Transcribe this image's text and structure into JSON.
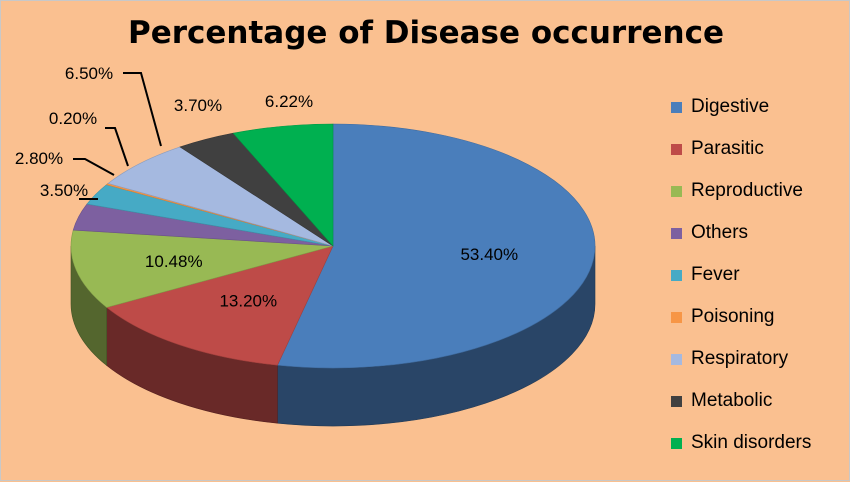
{
  "chart_data": {
    "type": "pie",
    "title": "Percentage of Disease occurrence",
    "legend_position": "right",
    "slices": [
      {
        "name": "Digestive",
        "value": 53.4,
        "label": "53.40%",
        "color": "#4a7ebb"
      },
      {
        "name": "Parasitic",
        "value": 13.2,
        "label": "13.20%",
        "color": "#be4b48"
      },
      {
        "name": "Reproductive",
        "value": 10.48,
        "label": "10.48%",
        "color": "#98b954"
      },
      {
        "name": "Others",
        "value": 3.5,
        "label": "3.50%",
        "color": "#7d60a0"
      },
      {
        "name": "Fever",
        "value": 2.8,
        "label": "2.80%",
        "color": "#46aac5"
      },
      {
        "name": "Poisoning",
        "value": 0.2,
        "label": "0.20%",
        "color": "#f79646"
      },
      {
        "name": "Respiratory",
        "value": 6.5,
        "label": "6.50%",
        "color": "#a5b9e0"
      },
      {
        "name": "Metabolic",
        "value": 3.7,
        "label": "3.70%",
        "color": "#404040"
      },
      {
        "name": "Skin disorders",
        "value": 6.22,
        "label": "6.22%",
        "color": "#00b050"
      }
    ]
  }
}
